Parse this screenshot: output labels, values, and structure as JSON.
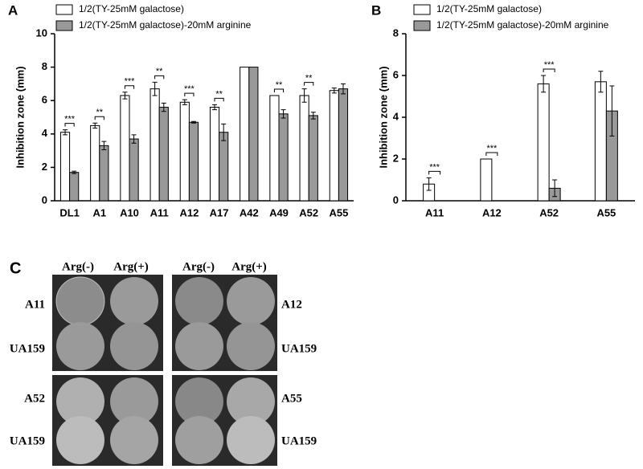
{
  "chart_data": [
    {
      "type": "bar",
      "panel_label": "A",
      "y_label": "Inhibition zone (mm)",
      "categories": [
        "DL1",
        "A1",
        "A10",
        "A11",
        "A12",
        "A17",
        "A42",
        "A49",
        "A52",
        "A55"
      ],
      "series": [
        {
          "name": "1/2(TY-25mM galactose)",
          "color": "#ffffff",
          "values": [
            4.1,
            4.5,
            6.3,
            6.7,
            5.9,
            5.6,
            8,
            6.3,
            6.3,
            6.6
          ],
          "errors": [
            0.15,
            0.15,
            0.2,
            0.4,
            0.15,
            0.15,
            0,
            0,
            0.4,
            0.15
          ]
        },
        {
          "name": "1/2(TY-25mM galactose)-20mM arginine",
          "color": "#999999",
          "values": [
            1.7,
            3.3,
            3.7,
            5.6,
            4.7,
            4.1,
            8,
            5.2,
            5.1,
            6.7
          ],
          "errors": [
            0.07,
            0.25,
            0.25,
            0.25,
            0.05,
            0.5,
            0,
            0.25,
            0.2,
            0.3
          ]
        }
      ],
      "significance": [
        "***",
        "**",
        "***",
        "**",
        "***",
        "**",
        null,
        "**",
        "**",
        null
      ],
      "ylim": [
        0,
        10
      ],
      "yticks": [
        0,
        2,
        4,
        6,
        8,
        10
      ],
      "legend": "top",
      "grid": false
    },
    {
      "type": "bar",
      "panel_label": "B",
      "y_label": "Inhibition zone (mm)",
      "categories": [
        "A11",
        "A12",
        "A52",
        "A55"
      ],
      "series": [
        {
          "name": "1/2(TY-25mM galactose)",
          "color": "#ffffff",
          "values": [
            0.8,
            2.0,
            5.6,
            5.7
          ],
          "errors": [
            0.3,
            0,
            0.4,
            0.5
          ]
        },
        {
          "name": "1/2(TY-25mM galactose)-20mM arginine",
          "color": "#999999",
          "values": [
            0,
            0,
            0.6,
            4.3
          ],
          "errors": [
            0,
            0,
            0.4,
            1.2
          ]
        }
      ],
      "significance": [
        "***",
        "***",
        "***",
        null
      ],
      "ylim": [
        0,
        8
      ],
      "yticks": [
        0,
        2,
        4,
        6,
        8
      ],
      "legend": "top",
      "grid": false
    }
  ],
  "panel_c": {
    "label": "C",
    "column_headers": [
      "Arg(-)",
      "Arg(+)",
      "Arg(-)",
      "Arg(+)"
    ],
    "row_labels": [
      "A11",
      "UA159",
      "A12",
      "UA159",
      "A52",
      "UA159",
      "A55",
      "UA159"
    ]
  }
}
